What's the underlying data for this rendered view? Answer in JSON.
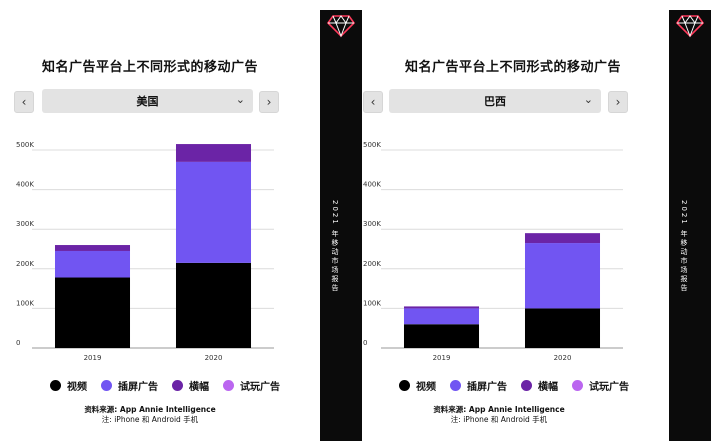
{
  "panels": [
    {
      "title": "知名广告平台上不同形式的移动广告",
      "nav_prev": "‹",
      "nav_next": "›",
      "selected_country": "美国",
      "chevron": "⌄",
      "legend": [
        {
          "label": "视频",
          "color": "#000000"
        },
        {
          "label": "插屏广告",
          "color": "#7155f2"
        },
        {
          "label": "横幅",
          "color": "#6b24a6"
        },
        {
          "label": "试玩广告",
          "color": "#bb66f0"
        }
      ],
      "source_line1": "资料来源: App Annie Intelligence",
      "source_line2": "注: iPhone 和 Android 手机",
      "sidebar_text": "2021 年移动市场报告",
      "sidebar_icon": "diamond-logo-icon"
    },
    {
      "title": "知名广告平台上不同形式的移动广告",
      "nav_prev": "‹",
      "nav_next": "›",
      "selected_country": "巴西",
      "chevron": "⌄",
      "legend": [
        {
          "label": "视频",
          "color": "#000000"
        },
        {
          "label": "插屏广告",
          "color": "#7155f2"
        },
        {
          "label": "横幅",
          "color": "#6b24a6"
        },
        {
          "label": "试玩广告",
          "color": "#bb66f0"
        }
      ],
      "source_line1": "资料来源: App Annie Intelligence",
      "source_line2": "注: iPhone 和 Android 手机",
      "sidebar_text": "2021 年移动市场报告",
      "sidebar_icon": "diamond-logo-icon"
    }
  ],
  "chart_data": [
    {
      "type": "bar",
      "stacked": true,
      "title": "知名广告平台上不同形式的移动广告",
      "filter": "美国",
      "categories": [
        "2019",
        "2020"
      ],
      "yticks": [
        "0",
        "100K",
        "200K",
        "300K",
        "400K",
        "500K"
      ],
      "ylim": [
        0,
        500000
      ],
      "grid": true,
      "legend_position": "bottom",
      "series": [
        {
          "name": "视频",
          "color": "#000000",
          "values": [
            178000,
            215000
          ]
        },
        {
          "name": "插屏广告",
          "color": "#7155f2",
          "values": [
            67000,
            255000
          ]
        },
        {
          "name": "横幅",
          "color": "#6b24a6",
          "values": [
            15000,
            45000
          ]
        },
        {
          "name": "试玩广告",
          "color": "#bb66f0",
          "values": [
            0,
            0
          ]
        }
      ]
    },
    {
      "type": "bar",
      "stacked": true,
      "title": "知名广告平台上不同形式的移动广告",
      "filter": "巴西",
      "categories": [
        "2019",
        "2020"
      ],
      "yticks": [
        "0",
        "100K",
        "200K",
        "300K",
        "400K",
        "500K"
      ],
      "ylim": [
        0,
        500000
      ],
      "grid": true,
      "legend_position": "bottom",
      "series": [
        {
          "name": "视频",
          "color": "#000000",
          "values": [
            60000,
            100000
          ]
        },
        {
          "name": "插屏广告",
          "color": "#7155f2",
          "values": [
            40000,
            165000
          ]
        },
        {
          "name": "横幅",
          "color": "#6b24a6",
          "values": [
            5000,
            25000
          ]
        },
        {
          "name": "试玩广告",
          "color": "#bb66f0",
          "values": [
            0,
            0
          ]
        }
      ]
    }
  ]
}
